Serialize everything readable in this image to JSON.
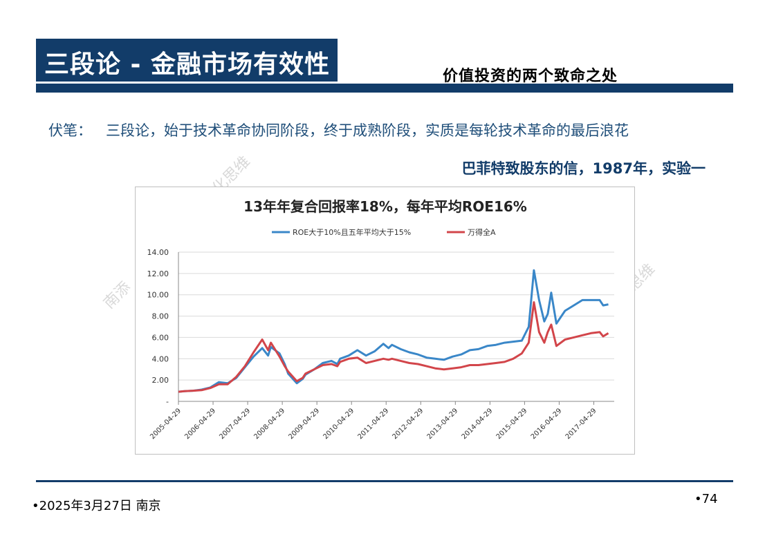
{
  "slide": {
    "title": "三段论 - 金融市场有效性",
    "subtitle": "价值投资的两个致命之处",
    "fubi_label": "伏笔：",
    "fubi_text": "三段论，始于技术革命协同阶段，终于成熟阶段，实质是每轮技术革命的最后浪花",
    "buffett_note": "巴菲特致股东的信，1987年，实验一",
    "footer_date": "•2025年3月27日 南京",
    "page_number": "•74",
    "watermarks": [
      "化思维",
      "南添",
      "思维"
    ]
  },
  "colors": {
    "brand": "#123c69",
    "series_blue": "#3a87c8",
    "series_red": "#d2454a"
  },
  "chart_data": {
    "type": "line",
    "title": "13年年复合回报率18%，每年平均ROE16%",
    "legend_placement": "top",
    "grid": true,
    "ylim": [
      0,
      14
    ],
    "yticks": [
      "-",
      "2.00",
      "4.00",
      "6.00",
      "8.00",
      "10.00",
      "12.00",
      "14.00"
    ],
    "xticks": [
      "2005-04-29",
      "2006-04-29",
      "2007-04-29",
      "2008-04-29",
      "2009-04-29",
      "2010-04-29",
      "2011-04-29",
      "2012-04-29",
      "2013-04-29",
      "2014-04-29",
      "2015-04-29",
      "2016-04-29",
      "2017-04-29"
    ],
    "x": [
      2005.33,
      2005.5,
      2005.75,
      2006.0,
      2006.25,
      2006.5,
      2006.75,
      2007.0,
      2007.25,
      2007.5,
      2007.75,
      2007.92,
      2008.0,
      2008.25,
      2008.4,
      2008.5,
      2008.75,
      2008.92,
      2009.0,
      2009.25,
      2009.5,
      2009.75,
      2009.92,
      2010.0,
      2010.25,
      2010.5,
      2010.75,
      2011.0,
      2011.25,
      2011.4,
      2011.5,
      2011.75,
      2012.0,
      2012.25,
      2012.5,
      2012.75,
      2013.0,
      2013.25,
      2013.5,
      2013.75,
      2014.0,
      2014.25,
      2014.5,
      2014.75,
      2015.0,
      2015.25,
      2015.45,
      2015.6,
      2015.75,
      2015.9,
      2016.0,
      2016.1,
      2016.25,
      2016.5,
      2016.75,
      2017.0,
      2017.25,
      2017.5,
      2017.6,
      2017.75
    ],
    "series": [
      {
        "name": "ROE大于10%且五年平均大于15%",
        "color": "#3a87c8",
        "values": [
          0.9,
          0.95,
          1.0,
          1.1,
          1.3,
          1.8,
          1.7,
          2.2,
          3.2,
          4.2,
          5.0,
          4.3,
          5.1,
          4.5,
          3.5,
          2.6,
          1.7,
          2.1,
          2.5,
          3.0,
          3.6,
          3.8,
          3.5,
          4.0,
          4.3,
          4.8,
          4.3,
          4.7,
          5.4,
          5.0,
          5.3,
          4.9,
          4.6,
          4.4,
          4.1,
          4.0,
          3.9,
          4.2,
          4.4,
          4.8,
          4.9,
          5.2,
          5.3,
          5.5,
          5.6,
          5.7,
          7.0,
          12.3,
          9.5,
          7.5,
          8.2,
          10.2,
          7.3,
          8.5,
          9.0,
          9.5,
          9.5,
          9.5,
          9.0,
          9.1
        ]
      },
      {
        "name": "万得全A",
        "color": "#d2454a",
        "values": [
          0.9,
          0.95,
          1.0,
          1.05,
          1.25,
          1.6,
          1.6,
          2.3,
          3.3,
          4.6,
          5.8,
          4.8,
          5.5,
          4.2,
          3.3,
          2.8,
          1.9,
          2.2,
          2.6,
          3.0,
          3.4,
          3.5,
          3.3,
          3.7,
          4.0,
          4.1,
          3.6,
          3.8,
          4.0,
          3.9,
          4.0,
          3.8,
          3.6,
          3.5,
          3.3,
          3.1,
          3.0,
          3.1,
          3.2,
          3.4,
          3.4,
          3.5,
          3.6,
          3.7,
          4.0,
          4.5,
          5.5,
          9.3,
          6.5,
          5.5,
          6.5,
          7.2,
          5.2,
          5.8,
          6.0,
          6.2,
          6.4,
          6.5,
          6.1,
          6.4
        ]
      }
    ]
  }
}
